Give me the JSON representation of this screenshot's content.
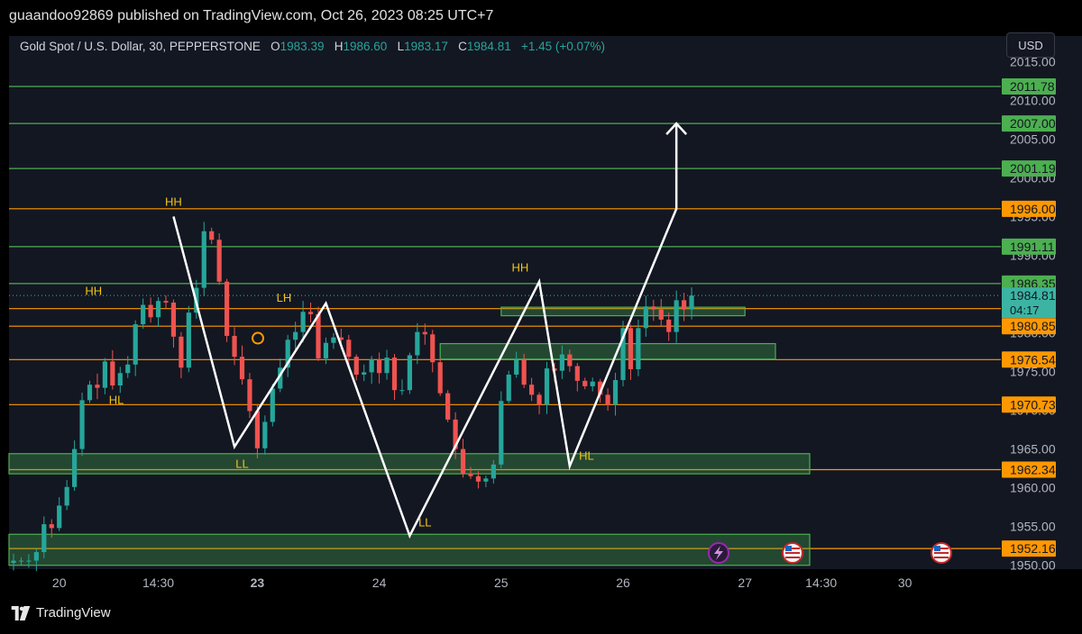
{
  "publisher": "guaandoo92869 published on TradingView.com, Oct 26, 2023 08:25 UTC+7",
  "legend": {
    "symbol": "Gold Spot / U.S. Dollar, 30, PEPPERSTONE",
    "open_label": "O",
    "open": "1983.39",
    "high_label": "H",
    "high": "1986.60",
    "low_label": "L",
    "low": "1983.17",
    "close_label": "C",
    "close": "1984.81",
    "change": "+1.45 (+0.07%)"
  },
  "currency": "USD",
  "countdown": "04:17",
  "brand": "TradingView",
  "colors": {
    "background": "#131722",
    "up": "#26a69a",
    "down": "#ef5350",
    "green_level": "#4caf50",
    "orange_level": "#ff9800",
    "zone_fill": "#4caf50",
    "annotation": "#f0c419",
    "path": "#ffffff",
    "current_price": "#3cb4a4"
  },
  "chart_data": {
    "type": "candlestick",
    "ylim": [
      1949.5,
      2015.5
    ],
    "x_ticks": [
      {
        "label": "20",
        "t": 6
      },
      {
        "label": "14:30",
        "t": 19
      },
      {
        "label": "23",
        "t": 32,
        "bold": true
      },
      {
        "label": "24",
        "t": 48
      },
      {
        "label": "25",
        "t": 64
      },
      {
        "label": "26",
        "t": 80
      },
      {
        "label": "27",
        "t": 96
      },
      {
        "label": "14:30",
        "t": 106
      },
      {
        "label": "30",
        "t": 117
      }
    ],
    "y_ticks": [
      1950,
      1955,
      1960,
      1965,
      1970,
      1975,
      1980,
      1985,
      1990,
      1995,
      2000,
      2005,
      2010,
      2015
    ],
    "price_levels": [
      {
        "value": 2011.78,
        "label": "2011.78",
        "color": "green"
      },
      {
        "value": 2007.0,
        "label": "2007.00",
        "color": "green"
      },
      {
        "value": 2001.19,
        "label": "2001.19",
        "color": "green"
      },
      {
        "value": 1996.0,
        "label": "1996.00",
        "color": "orange"
      },
      {
        "value": 1991.11,
        "label": "1991.11",
        "color": "green"
      },
      {
        "value": 1986.35,
        "label": "1986.35",
        "color": "green"
      },
      {
        "value": 1983.12,
        "label": "1983.12",
        "color": "orange"
      },
      {
        "value": 1980.85,
        "label": "1980.85",
        "color": "orange"
      },
      {
        "value": 1976.54,
        "label": "1976.54",
        "color": "orange"
      },
      {
        "value": 1970.73,
        "label": "1970.73",
        "color": "orange"
      },
      {
        "value": 1962.34,
        "label": "1962.34",
        "color": "orange"
      },
      {
        "value": 1952.16,
        "label": "1952.16",
        "color": "orange"
      }
    ],
    "current_price": {
      "value": 1984.81,
      "label": "1984.81"
    },
    "zones": [
      {
        "t0": 0,
        "t1": 104.5,
        "y0": 1961.8,
        "y1": 1964.4
      },
      {
        "t0": 0,
        "t1": 104.5,
        "y0": 1950.0,
        "y1": 1954.0
      },
      {
        "t0": 56,
        "t1": 100,
        "y0": 1976.6,
        "y1": 1978.6
      },
      {
        "t0": 64,
        "t1": 96,
        "y0": 1982.2,
        "y1": 1983.3
      }
    ],
    "path": [
      {
        "t": 21,
        "v": 1995.0
      },
      {
        "t": 29,
        "v": 1965.3
      },
      {
        "t": 41,
        "v": 1983.8
      },
      {
        "t": 52,
        "v": 1953.8
      },
      {
        "t": 69,
        "v": 1986.6
      },
      {
        "t": 73,
        "v": 1962.8
      },
      {
        "t": 87,
        "v": 1996.0
      },
      {
        "t": 87,
        "v": 2007.0
      }
    ],
    "annotations": [
      {
        "text": "HH",
        "t": 21,
        "v": 1996.4
      },
      {
        "text": "HH",
        "t": 10.5,
        "v": 1984.9
      },
      {
        "text": "HL",
        "t": 13.5,
        "v": 1970.8
      },
      {
        "text": "LH",
        "t": 35.5,
        "v": 1984.0
      },
      {
        "text": "LL",
        "t": 30,
        "v": 1962.6
      },
      {
        "text": "LL",
        "t": 54,
        "v": 1955.0
      },
      {
        "text": "HH",
        "t": 66.5,
        "v": 1987.9
      },
      {
        "text": "HL",
        "t": 75.2,
        "v": 1963.6
      }
    ],
    "candles_close": [
      1950.6,
      1950.6,
      1950.6,
      1951.7,
      1955.3,
      1954.8,
      1957.7,
      1960.1,
      1965.0,
      1971.3,
      1973.3,
      1972.9,
      1976.3,
      1973.2,
      1974.8,
      1975.9,
      1981.1,
      1983.6,
      1982.0,
      1984.1,
      1983.9,
      1979.5,
      1975.5,
      1982.6,
      1985.8,
      1993.1,
      1992.0,
      1986.6,
      1979.6,
      1976.9,
      1974.0,
      1969.9,
      1965.1,
      1968.5,
      1972.8,
      1975.5,
      1979.1,
      1980.1,
      1982.7,
      1982.4,
      1976.7,
      1978.7,
      1979.4,
      1979.1,
      1976.9,
      1974.6,
      1974.9,
      1976.6,
      1974.8,
      1976.8,
      1972.6,
      1972.6,
      1977.1,
      1980.1,
      1979.8,
      1976.2,
      1972.2,
      1968.8,
      1965.0,
      1961.8,
      1961.5,
      1960.8,
      1961.2,
      1963.0,
      1971.2,
      1974.6,
      1976.5,
      1973.3,
      1972.0,
      1970.7,
      1975.4,
      1975.1,
      1977.2,
      1975.7,
      1973.8,
      1973.1,
      1973.7,
      1972.0,
      1970.7,
      1973.9,
      1980.6,
      1975.3,
      1980.6,
      1983.4,
      1983.0,
      1981.7,
      1980.1,
      1984.2,
      1983.0,
      1984.8
    ]
  }
}
